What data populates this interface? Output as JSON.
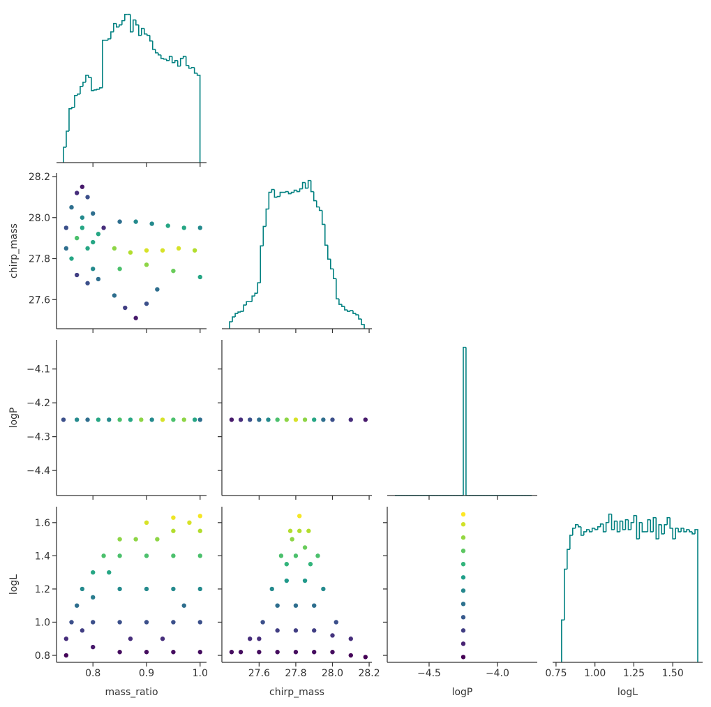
{
  "chart_data": {
    "type": "pairplot",
    "color": "#008080",
    "cmap": "viridis",
    "clim": [
      0.79,
      1.65
    ],
    "variables": [
      {
        "label": "mass_ratio",
        "xlim": [
          0.732,
          1.012
        ],
        "xticks": [
          0.8,
          0.9,
          {
            "value": 1.0,
            "label": "1.0"
          }
        ],
        "hist": {
          "bins": [
            0.745,
            0.7502,
            0.7554,
            0.7606,
            0.7658,
            0.771,
            0.7762,
            0.7814,
            0.7866,
            0.7918,
            0.797,
            0.8022,
            0.8074,
            0.8126,
            0.8178,
            0.823,
            0.8282,
            0.8334,
            0.8386,
            0.8438,
            0.849,
            0.8542,
            0.8594,
            0.8646,
            0.8698,
            0.875,
            0.8802,
            0.8854,
            0.8906,
            0.8958,
            0.901,
            0.9062,
            0.9114,
            0.9166,
            0.9218,
            0.927,
            0.9322,
            0.9374,
            0.9426,
            0.9478,
            0.953,
            0.9582,
            0.9634,
            0.9686,
            0.9738,
            0.979,
            0.9842,
            0.9894,
            0.9946,
            0.9998
          ],
          "counts": [
            22,
            45,
            77,
            79,
            96,
            98,
            109,
            115,
            125,
            122,
            103,
            104,
            105,
            107,
            175,
            175,
            177,
            187,
            199,
            194,
            197,
            203,
            212,
            212,
            187,
            204,
            197,
            182,
            192,
            184,
            182,
            174,
            162,
            157,
            154,
            149,
            148,
            146,
            152,
            143,
            146,
            138,
            149,
            152,
            139,
            135,
            136,
            128,
            125
          ]
        }
      },
      {
        "label": "chirp_mass",
        "xlim": [
          27.397,
          28.215
        ],
        "xticks": [
          27.6,
          27.8,
          {
            "value": 28.0,
            "label": "28.0"
          },
          28.2
        ],
        "ylim": [
          27.458,
          28.217
        ],
        "yticks": [
          27.6,
          27.8,
          {
            "value": 28.0,
            "label": "28.0"
          },
          28.2
        ],
        "hist": {
          "bins": [
            27.439,
            27.4543,
            27.4696,
            27.4849,
            27.5002,
            27.5155,
            27.5308,
            27.5461,
            27.5614,
            27.5767,
            27.592,
            27.6073,
            27.6226,
            27.6379,
            27.6532,
            27.6685,
            27.6838,
            27.6991,
            27.7144,
            27.7297,
            27.745,
            27.7603,
            27.7756,
            27.7909,
            27.8062,
            27.8215,
            27.8368,
            27.8521,
            27.8674,
            27.8827,
            27.898,
            27.9133,
            27.9286,
            27.9439,
            27.9592,
            27.9745,
            27.9898,
            28.0051,
            28.0204,
            28.0357,
            28.051,
            28.0663,
            28.0816,
            28.0969,
            28.1122,
            28.1275,
            28.1428,
            28.1581,
            28.1734
          ],
          "counts": [
            10,
            17,
            22,
            24,
            25,
            34,
            39,
            39,
            47,
            51,
            66,
            119,
            147,
            172,
            196,
            200,
            189,
            190,
            196,
            196,
            197,
            194,
            196,
            199,
            197,
            201,
            210,
            202,
            213,
            197,
            184,
            175,
            170,
            150,
            120,
            100,
            86,
            72,
            43,
            35,
            32,
            27,
            25,
            26,
            22,
            20,
            14,
            6
          ]
        }
      },
      {
        "label": "logP",
        "xlim": [
          -4.806,
          -3.709
        ],
        "xticks": [
          {
            "value": -4.5,
            "label": "−4.5"
          },
          {
            "value": -4.0,
            "label": "−4.0"
          }
        ],
        "ylim": [
          -4.474,
          -4.014
        ],
        "yticks": [
          {
            "value": -4.1,
            "label": "−4.1"
          },
          {
            "value": -4.2,
            "label": "−4.2"
          },
          {
            "value": -4.3,
            "label": "−4.3"
          },
          {
            "value": -4.4,
            "label": "−4.4"
          }
        ],
        "hist": {
          "bins": [
            -4.75,
            -4.73,
            -4.71,
            -4.69,
            -4.67,
            -4.65,
            -4.63,
            -4.61,
            -4.59,
            -4.57,
            -4.55,
            -4.53,
            -4.51,
            -4.49,
            -4.47,
            -4.45,
            -4.43,
            -4.41,
            -4.39,
            -4.37,
            -4.35,
            -4.33,
            -4.31,
            -4.29,
            -4.27,
            -4.25,
            -4.23,
            -4.21,
            -4.19,
            -4.17,
            -4.15,
            -4.13,
            -4.11,
            -4.09,
            -4.07,
            -4.05,
            -4.03,
            -4.01,
            -3.99,
            -3.97,
            -3.95,
            -3.93,
            -3.91,
            -3.89,
            -3.87,
            -3.85,
            -3.83,
            -3.81,
            -3.79,
            -3.77,
            -3.75
          ],
          "counts": [
            0,
            0,
            0,
            0,
            0,
            0,
            0,
            0,
            0,
            0,
            0,
            0,
            0,
            0,
            0,
            0,
            0,
            0,
            0,
            0,
            0,
            0,
            0,
            0,
            0,
            100,
            0,
            0,
            0,
            0,
            0,
            0,
            0,
            0,
            0,
            0,
            0,
            0,
            0,
            0,
            0,
            0,
            0,
            0,
            0,
            0,
            0,
            0,
            0,
            0
          ]
        }
      },
      {
        "label": "logL",
        "xlim": [
          0.728,
          1.692
        ],
        "xticks": [
          0.75,
          {
            "value": 1.0,
            "label": "1.00"
          },
          1.25,
          {
            "value": 1.5,
            "label": "1.50"
          }
        ],
        "ylim": [
          0.758,
          1.696
        ],
        "yticks": [
          0.8,
          {
            "value": 1.0,
            "label": "1.0"
          },
          1.2,
          1.4,
          1.6
        ],
        "hist": {
          "bins": [
            0.7857,
            0.8036,
            0.8214,
            0.8393,
            0.8571,
            0.875,
            0.8929,
            0.9107,
            0.9286,
            0.9464,
            0.9643,
            0.9821,
            1.0,
            1.0179,
            1.0357,
            1.0536,
            1.0714,
            1.0893,
            1.1071,
            1.125,
            1.1429,
            1.1607,
            1.1786,
            1.1964,
            1.2143,
            1.2321,
            1.25,
            1.2679,
            1.2857,
            1.3036,
            1.3214,
            1.3393,
            1.3571,
            1.375,
            1.3929,
            1.4107,
            1.4286,
            1.4464,
            1.4643,
            1.4821,
            1.5,
            1.5179,
            1.5357,
            1.5536,
            1.5714,
            1.5893,
            1.6071,
            1.625,
            1.6429,
            1.6607
          ],
          "counts": [
            60,
            132,
            160,
            180,
            190,
            195,
            192,
            180,
            185,
            188,
            185,
            190,
            188,
            192,
            196,
            185,
            198,
            210,
            188,
            200,
            185,
            200,
            188,
            202,
            188,
            198,
            208,
            175,
            198,
            185,
            185,
            202,
            185,
            205,
            175,
            195,
            182,
            195,
            205,
            190,
            175,
            190,
            185,
            190,
            185,
            188,
            185,
            182,
            188
          ]
        }
      }
    ],
    "pairs": [
      {
        "x": [
          0.75,
          0.76,
          0.77,
          0.78,
          0.79,
          0.8,
          0.81,
          0.76,
          0.77,
          0.78,
          0.79,
          0.8,
          0.75,
          0.77,
          0.79,
          0.81,
          0.78,
          0.8,
          0.82,
          0.85,
          0.88,
          0.91,
          0.94,
          0.97,
          1.0,
          0.84,
          0.87,
          0.9,
          0.93,
          0.96,
          0.99,
          0.85,
          0.9,
          0.95,
          1.0,
          0.84,
          0.86,
          0.88,
          0.9,
          0.92
        ],
        "y": [
          27.95,
          28.05,
          28.12,
          28.15,
          28.1,
          28.02,
          27.92,
          27.8,
          27.9,
          28.0,
          27.85,
          27.75,
          27.85,
          27.72,
          27.68,
          27.7,
          27.95,
          27.88,
          27.95,
          27.98,
          27.98,
          27.97,
          27.96,
          27.95,
          27.95,
          27.85,
          27.83,
          27.84,
          27.84,
          27.85,
          27.84,
          27.75,
          27.77,
          27.74,
          27.71,
          27.62,
          27.56,
          27.51,
          27.58,
          27.65
        ],
        "c": [
          1.0,
          1.1,
          0.9,
          0.85,
          1.0,
          1.1,
          1.3,
          1.3,
          1.4,
          1.2,
          1.3,
          1.2,
          1.1,
          0.95,
          1.0,
          1.1,
          1.3,
          1.3,
          0.9,
          1.1,
          1.2,
          1.2,
          1.3,
          1.3,
          1.2,
          1.5,
          1.55,
          1.6,
          1.6,
          1.6,
          1.55,
          1.4,
          1.5,
          1.45,
          1.3,
          1.1,
          0.95,
          0.85,
          1.0,
          1.1
        ]
      },
      {
        "x": [
          0.745,
          0.77,
          0.79,
          0.81,
          0.83,
          0.85,
          0.87,
          0.89,
          0.91,
          0.93,
          0.95,
          0.97,
          0.99,
          1.0
        ],
        "y": [
          -4.25,
          -4.25,
          -4.25,
          -4.25,
          -4.25,
          -4.25,
          -4.25,
          -4.25,
          -4.25,
          -4.25,
          -4.25,
          -4.25,
          -4.25,
          -4.25
        ],
        "c": [
          1.0,
          1.2,
          1.1,
          1.3,
          1.2,
          1.4,
          1.3,
          1.5,
          1.2,
          1.6,
          1.4,
          1.5,
          1.3,
          1.1
        ]
      },
      {
        "x": [
          27.45,
          27.5,
          27.55,
          27.6,
          27.65,
          27.7,
          27.75,
          27.8,
          27.85,
          27.9,
          27.95,
          28.0,
          28.1,
          28.18
        ],
        "y": [
          -4.25,
          -4.25,
          -4.25,
          -4.25,
          -4.25,
          -4.25,
          -4.25,
          -4.25,
          -4.25,
          -4.25,
          -4.25,
          -4.25,
          -4.25,
          -4.25
        ],
        "c": [
          0.85,
          0.9,
          1.0,
          1.1,
          1.2,
          1.4,
          1.5,
          1.6,
          1.5,
          1.3,
          1.1,
          1.0,
          0.9,
          0.85
        ]
      },
      {
        "x": [
          0.75,
          0.75,
          0.76,
          0.77,
          0.78,
          0.8,
          0.82,
          0.85,
          0.9,
          0.95,
          1.0,
          0.8,
          0.85,
          0.9,
          0.95,
          1.0,
          0.8,
          0.8,
          0.85,
          0.85,
          0.85,
          0.9,
          0.9,
          0.9,
          0.95,
          0.95,
          0.95,
          0.95,
          1.0,
          1.0,
          1.0,
          1.0,
          0.88,
          0.92,
          0.98,
          0.87,
          0.93,
          0.97,
          0.83,
          0.78
        ],
        "y": [
          0.8,
          0.9,
          1.0,
          1.1,
          1.2,
          1.3,
          1.4,
          1.5,
          1.6,
          1.63,
          1.64,
          0.85,
          0.82,
          0.82,
          0.82,
          0.82,
          1.0,
          1.15,
          1.0,
          1.2,
          1.4,
          1.0,
          1.2,
          1.4,
          1.0,
          1.2,
          1.4,
          1.55,
          1.0,
          1.2,
          1.4,
          1.55,
          1.5,
          1.5,
          1.6,
          0.9,
          0.9,
          1.1,
          1.3,
          0.95
        ],
        "c": [
          0.8,
          0.9,
          1.0,
          1.1,
          1.2,
          1.3,
          1.4,
          1.5,
          1.6,
          1.63,
          1.64,
          0.85,
          0.82,
          0.82,
          0.82,
          0.82,
          1.0,
          1.15,
          1.0,
          1.2,
          1.4,
          1.0,
          1.2,
          1.4,
          1.0,
          1.2,
          1.4,
          1.55,
          1.0,
          1.2,
          1.4,
          1.55,
          1.5,
          1.5,
          1.6,
          0.9,
          0.9,
          1.1,
          1.3,
          0.95
        ]
      },
      {
        "x": [
          27.45,
          27.55,
          27.62,
          27.67,
          27.72,
          27.77,
          27.82,
          27.87,
          27.92,
          27.95,
          28.02,
          28.1,
          28.18,
          27.5,
          27.6,
          27.7,
          27.8,
          27.9,
          28.0,
          28.1,
          27.6,
          27.7,
          27.8,
          27.9,
          28.0,
          27.7,
          27.8,
          27.9,
          27.75,
          27.85,
          27.8,
          27.85,
          27.78,
          27.82,
          27.75,
          27.88
        ],
        "y": [
          0.82,
          0.9,
          1.0,
          1.2,
          1.4,
          1.55,
          1.64,
          1.55,
          1.4,
          1.2,
          1.0,
          0.9,
          0.79,
          0.82,
          0.82,
          0.82,
          0.82,
          0.82,
          0.82,
          0.8,
          0.9,
          0.95,
          0.95,
          0.95,
          0.92,
          1.1,
          1.1,
          1.1,
          1.25,
          1.25,
          1.4,
          1.45,
          1.5,
          1.55,
          1.35,
          1.35
        ],
        "c": [
          0.82,
          0.9,
          1.0,
          1.2,
          1.4,
          1.55,
          1.64,
          1.55,
          1.4,
          1.2,
          1.0,
          0.9,
          0.79,
          0.82,
          0.82,
          0.82,
          0.82,
          0.82,
          0.82,
          0.8,
          0.9,
          0.95,
          0.95,
          0.95,
          0.92,
          1.1,
          1.1,
          1.1,
          1.25,
          1.25,
          1.4,
          1.45,
          1.5,
          1.55,
          1.35,
          1.35
        ]
      },
      {
        "x": [
          -4.25,
          -4.25,
          -4.25,
          -4.25,
          -4.25,
          -4.25,
          -4.25,
          -4.25,
          -4.25,
          -4.25,
          -4.25,
          -4.25
        ],
        "y": [
          0.79,
          0.87,
          0.95,
          1.03,
          1.11,
          1.19,
          1.27,
          1.35,
          1.43,
          1.51,
          1.59,
          1.65
        ],
        "c": [
          0.79,
          0.87,
          0.95,
          1.03,
          1.11,
          1.19,
          1.27,
          1.35,
          1.43,
          1.51,
          1.59,
          1.65
        ]
      }
    ]
  }
}
